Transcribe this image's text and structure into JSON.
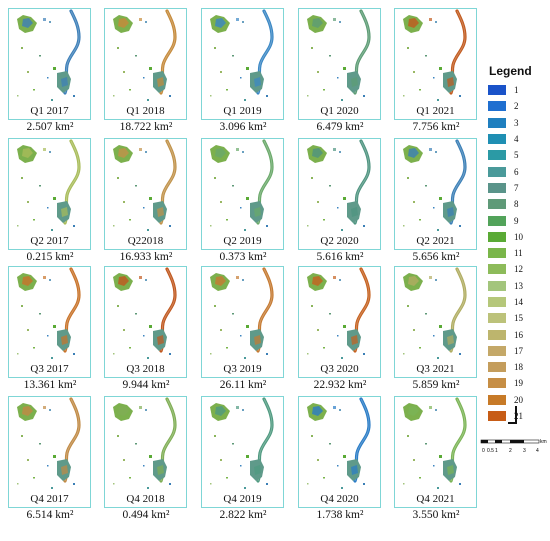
{
  "panels": [
    {
      "label": "Q1 2017",
      "area": "2.507 km²",
      "accent": "#3d7fb8"
    },
    {
      "label": "Q1 2018",
      "area": "18.722 km²",
      "accent": "#c58a3b"
    },
    {
      "label": "Q1 2019",
      "area": "3.096 km²",
      "accent": "#3a87c4"
    },
    {
      "label": "Q1 2020",
      "area": "6.479 km²",
      "accent": "#5d9c75"
    },
    {
      "label": "Q1 2021",
      "area": "7.756 km²",
      "accent": "#c15a1e"
    },
    {
      "label": "Q2 2017",
      "area": "0.215 km²",
      "accent": "#a8bc5a"
    },
    {
      "label": "Q22018",
      "area": "16.933 km²",
      "accent": "#c0924a"
    },
    {
      "label": "Q2 2019",
      "area": "0.373 km²",
      "accent": "#6aa96a"
    },
    {
      "label": "Q2 2020",
      "area": "5.616 km²",
      "accent": "#4f9480"
    },
    {
      "label": "Q2 2021",
      "area": "5.656 km²",
      "accent": "#3b7fb6"
    },
    {
      "label": "Q3 2017",
      "area": "13.361 km²",
      "accent": "#c8732a"
    },
    {
      "label": "Q3 2018",
      "area": "9.944 km²",
      "accent": "#c0581f"
    },
    {
      "label": "Q3 2019",
      "area": "26.11 km²",
      "accent": "#c57a32"
    },
    {
      "label": "Q3 2020",
      "area": "22.932 km²",
      "accent": "#c5611f"
    },
    {
      "label": "Q3 2021",
      "area": "5.859 km²",
      "accent": "#b0ad62"
    },
    {
      "label": "Q4 2017",
      "area": "6.514 km²",
      "accent": "#c08a45"
    },
    {
      "label": "Q4 2018",
      "area": "0.494 km²",
      "accent": "#7fae55"
    },
    {
      "label": "Q4 2019",
      "area": "2.822 km²",
      "accent": "#4f9a80"
    },
    {
      "label": "Q4 2020",
      "area": "1.738 km²",
      "accent": "#2a7cc6"
    },
    {
      "label": "Q4 2021",
      "area": "3.550 km²",
      "accent": "#7bb456"
    }
  ],
  "legend": {
    "title": "Legend",
    "items": [
      {
        "label": "1",
        "color": "#1a53c9"
      },
      {
        "label": "2",
        "color": "#1f6fd0"
      },
      {
        "label": "3",
        "color": "#1f7fbf"
      },
      {
        "label": "4",
        "color": "#1f8fb3"
      },
      {
        "label": "5",
        "color": "#2b9aa5"
      },
      {
        "label": "6",
        "color": "#4a9a9a"
      },
      {
        "label": "7",
        "color": "#5a948a"
      },
      {
        "label": "8",
        "color": "#5f9a78"
      },
      {
        "label": "9",
        "color": "#52a35a"
      },
      {
        "label": "10",
        "color": "#5aaa35"
      },
      {
        "label": "11",
        "color": "#7ab64a"
      },
      {
        "label": "12",
        "color": "#8dbb5a"
      },
      {
        "label": "13",
        "color": "#a3c57c"
      },
      {
        "label": "14",
        "color": "#b5c77a"
      },
      {
        "label": "15",
        "color": "#bcc27a"
      },
      {
        "label": "16",
        "color": "#bdb56d"
      },
      {
        "label": "17",
        "color": "#c4a868"
      },
      {
        "label": "18",
        "color": "#c49d5c"
      },
      {
        "label": "19",
        "color": "#c68e45"
      },
      {
        "label": "20",
        "color": "#c77a28"
      },
      {
        "label": "21",
        "color": "#c75c16"
      }
    ]
  },
  "scale_bar": {
    "ticks": [
      "0",
      "0.5",
      "1",
      "2",
      "3",
      "4"
    ],
    "unit": "km"
  }
}
